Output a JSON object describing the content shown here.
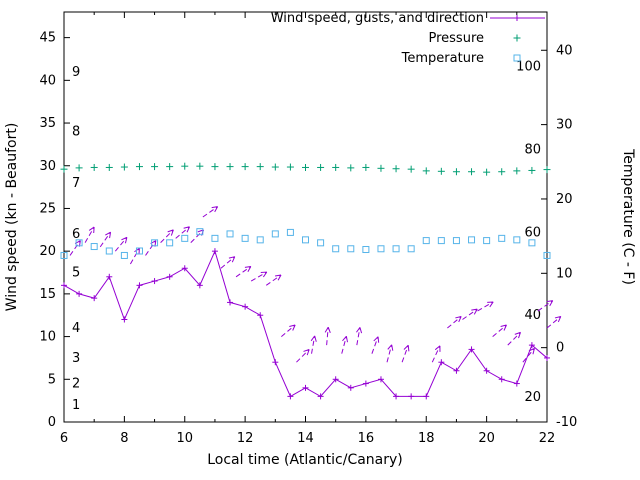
{
  "chart_data": {
    "type": "line",
    "xlabel": "Local time (Atlantic/Canary)",
    "ylabel_left": "Wind speed (kn - Beaufort)",
    "ylabel_right": "Temperature (C - F)",
    "xlim": [
      6,
      22
    ],
    "ylim_left": [
      0,
      48
    ],
    "x_ticks": [
      6,
      8,
      10,
      12,
      14,
      16,
      18,
      20,
      22
    ],
    "x_minor_ticks": [
      7,
      9,
      11,
      13,
      15,
      17,
      19,
      21
    ],
    "left_ticks": [
      0,
      5,
      10,
      15,
      20,
      25,
      30,
      35,
      40,
      45
    ],
    "right_ticks_c": [
      -10,
      0,
      10,
      20,
      30,
      40
    ],
    "right_axis": {
      "c_min": -10,
      "kn_per_c": 0.8704
    },
    "beaufort_labels": [
      {
        "label": "1",
        "kn": 2
      },
      {
        "label": "2",
        "kn": 4.5
      },
      {
        "label": "3",
        "kn": 7.5
      },
      {
        "label": "4",
        "kn": 11
      },
      {
        "label": "5",
        "kn": 17.5
      },
      {
        "label": "6",
        "kn": 22
      },
      {
        "label": "7",
        "kn": 28
      },
      {
        "label": "8",
        "kn": 34
      },
      {
        "label": "9",
        "kn": 41
      }
    ],
    "fahrenheit_labels": [
      {
        "label": "20",
        "kn": 2.9
      },
      {
        "label": "40",
        "kn": 12.5
      },
      {
        "label": "60",
        "kn": 22.2
      },
      {
        "label": "80",
        "kn": 31.9
      },
      {
        "label": "100",
        "kn": 41.6
      }
    ],
    "legend": [
      {
        "label": "Wind speed, gusts, and direction",
        "color": "#9400D3",
        "marker": "line-plus"
      },
      {
        "label": "Pressure",
        "color": "#009E73",
        "marker": "plus"
      },
      {
        "label": "Temperature",
        "color": "#56B4E9",
        "marker": "square"
      }
    ],
    "series": {
      "wind": {
        "name": "Wind speed",
        "color": "#9400D3",
        "x": [
          6,
          6.5,
          7,
          7.5,
          8,
          8.5,
          9,
          9.5,
          10,
          10.5,
          11,
          11.5,
          12,
          12.5,
          13,
          13.5,
          14,
          14.5,
          15,
          15.5,
          16,
          16.5,
          17,
          17.5,
          18,
          18.5,
          19,
          19.5,
          20,
          20.5,
          21,
          21.5,
          22
        ],
        "kn": [
          16,
          15,
          14.5,
          17,
          12,
          16,
          16.5,
          17,
          18,
          16,
          20,
          14,
          13.5,
          12.5,
          7,
          3,
          4,
          3,
          5,
          4,
          4.5,
          5,
          3,
          3,
          3,
          7,
          6,
          8.5,
          6,
          5,
          4.5,
          9,
          7.5
        ]
      },
      "gusts": {
        "name": "Gusts and direction",
        "color": "#9400D3",
        "arrows": [
          [
            6.2,
            19.5,
            55
          ],
          [
            6.7,
            21,
            60
          ],
          [
            7.2,
            20.5,
            55
          ],
          [
            7.7,
            20,
            50
          ],
          [
            8.2,
            18.5,
            60
          ],
          [
            8.7,
            19.5,
            55
          ],
          [
            9.2,
            21,
            45
          ],
          [
            9.7,
            21.5,
            40
          ],
          [
            10.2,
            21,
            45
          ],
          [
            10.6,
            24,
            35
          ],
          [
            11.2,
            18,
            40
          ],
          [
            11.7,
            17,
            35
          ],
          [
            12.2,
            16.5,
            30
          ],
          [
            12.7,
            16,
            35
          ],
          [
            13.2,
            10,
            40
          ],
          [
            13.7,
            7,
            45
          ],
          [
            14.2,
            8,
            80
          ],
          [
            14.7,
            9,
            85
          ],
          [
            15.2,
            8,
            75
          ],
          [
            15.7,
            9,
            80
          ],
          [
            16.2,
            8,
            70
          ],
          [
            16.7,
            7,
            75
          ],
          [
            17.2,
            7,
            70
          ],
          [
            18.2,
            7,
            65
          ],
          [
            18.7,
            11,
            40
          ],
          [
            19.2,
            12,
            35
          ],
          [
            19.7,
            13,
            30
          ],
          [
            20.2,
            10,
            40
          ],
          [
            20.7,
            9,
            45
          ],
          [
            21.2,
            7,
            50
          ],
          [
            21.7,
            13,
            35
          ],
          [
            22,
            11,
            40
          ]
        ]
      },
      "pressure": {
        "name": "Pressure",
        "color": "#009E73",
        "x": [
          6,
          6.5,
          7,
          7.5,
          8,
          8.5,
          9,
          9.5,
          10,
          10.5,
          11,
          11.5,
          12,
          12.5,
          13,
          13.5,
          14,
          14.5,
          15,
          15.5,
          16,
          16.5,
          17,
          17.5,
          18,
          18.5,
          19,
          19.5,
          20,
          20.5,
          21,
          21.5,
          22
        ],
        "values": [
          29.6,
          29.75,
          29.8,
          29.8,
          29.85,
          29.9,
          29.9,
          29.9,
          29.95,
          29.95,
          29.9,
          29.9,
          29.9,
          29.9,
          29.85,
          29.85,
          29.8,
          29.8,
          29.8,
          29.75,
          29.8,
          29.7,
          29.65,
          29.6,
          29.4,
          29.35,
          29.3,
          29.3,
          29.25,
          29.3,
          29.4,
          29.45,
          29.55
        ]
      },
      "temperature": {
        "name": "Temperature",
        "color": "#56B4E9",
        "x": [
          6,
          6.5,
          7,
          7.5,
          8,
          8.5,
          9,
          9.5,
          10,
          10.5,
          11,
          11.5,
          12,
          12.5,
          13,
          13.5,
          14,
          14.5,
          15,
          15.5,
          16,
          16.5,
          17,
          17.5,
          18,
          18.5,
          19,
          19.5,
          20,
          20.5,
          21,
          21.5,
          22
        ],
        "celsius": [
          12.4,
          14.1,
          13.6,
          13.0,
          12.4,
          13.0,
          14.1,
          14.1,
          14.7,
          15.6,
          14.7,
          15.3,
          14.7,
          14.5,
          15.3,
          15.5,
          14.5,
          14.1,
          13.3,
          13.3,
          13.2,
          13.3,
          13.3,
          13.3,
          14.4,
          14.4,
          14.4,
          14.5,
          14.4,
          14.7,
          14.5,
          14.1,
          12.4
        ]
      }
    }
  }
}
